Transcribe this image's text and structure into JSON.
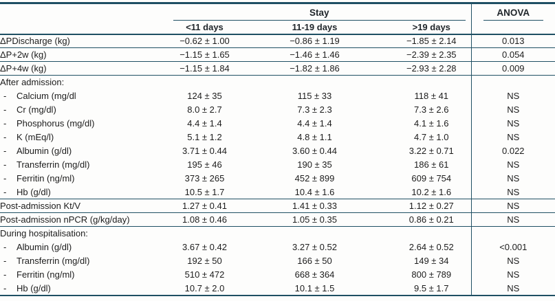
{
  "colors": {
    "line": "#1e4f63",
    "text": "#1c1c1c",
    "header_text": "#20262b",
    "background": "#fdfdfc"
  },
  "table": {
    "dash": "-",
    "header": {
      "group_label": "Stay",
      "anova_label": "ANOVA",
      "columns": [
        "<11 days",
        "11-19 days",
        ">19 days"
      ]
    },
    "rows": [
      {
        "kind": "data",
        "indent": false,
        "label": "ΔPDischarge (kg)",
        "values": [
          "−0.62 ± 1.00",
          "−0.86 ± 1.19",
          "−1.85 ± 2.14"
        ],
        "anova": "0.013",
        "rule": true
      },
      {
        "kind": "data",
        "indent": false,
        "label": "ΔP+2w (kg)",
        "values": [
          "−1.15 ± 1.65",
          "−1.46 ± 1.46",
          "−2.39 ± 2.35"
        ],
        "anova": "0.054",
        "rule": true
      },
      {
        "kind": "data",
        "indent": false,
        "label": "ΔP+4w (kg)",
        "values": [
          "−1.15 ± 1.84",
          "−1.82 ± 1.86",
          "−2.93 ± 2.28"
        ],
        "anova": "0.009",
        "rule": true
      },
      {
        "kind": "section",
        "label": "After admission:",
        "rule": false
      },
      {
        "kind": "data",
        "indent": true,
        "label": "Calcium (mg/dl",
        "values": [
          "124 ± 35",
          "115 ± 33",
          "118 ± 41"
        ],
        "anova": "NS",
        "rule": false
      },
      {
        "kind": "data",
        "indent": true,
        "label": "Cr (mg/dl)",
        "values": [
          "8.0 ± 2.7",
          "7.3 ± 2.3",
          "7.3 ± 2.6"
        ],
        "anova": "NS",
        "rule": false
      },
      {
        "kind": "data",
        "indent": true,
        "label": "Phosphorus (mg/dl)",
        "values": [
          "4.4 ± 1.4",
          "4.4 ± 1.4",
          "4.1 ± 1.6"
        ],
        "anova": "NS",
        "rule": false
      },
      {
        "kind": "data",
        "indent": true,
        "label": "K (mEq/l)",
        "values": [
          "5.1 ± 1.2",
          "4.8 ± 1.1",
          "4.7 ± 1.0"
        ],
        "anova": "NS",
        "rule": false
      },
      {
        "kind": "data",
        "indent": true,
        "label": "Albumin (g/dl)",
        "values": [
          "3.71 ± 0.44",
          "3.60 ± 0.44",
          "3.22 ± 0.71"
        ],
        "anova": "0.022",
        "rule": false
      },
      {
        "kind": "data",
        "indent": true,
        "label": "Transferrin (mg/dl)",
        "values": [
          "195 ± 46",
          "190 ± 35",
          "186 ± 61"
        ],
        "anova": "NS",
        "rule": false
      },
      {
        "kind": "data",
        "indent": true,
        "label": "Ferritin (ng/ml)",
        "values": [
          "373 ± 265",
          "452 ± 899",
          "609 ± 754"
        ],
        "anova": "NS",
        "rule": false
      },
      {
        "kind": "data",
        "indent": true,
        "label": "Hb (g/dl)",
        "values": [
          "10.5 ± 1.7",
          "10.4 ± 1.6",
          "10.2 ± 1.6"
        ],
        "anova": "NS",
        "rule": true
      },
      {
        "kind": "data",
        "indent": false,
        "label": "Post-admission Kt/V",
        "values": [
          "1.27 ± 0.41",
          "1.41 ± 0.33",
          "1.12 ± 0.27"
        ],
        "anova": "NS",
        "rule": true
      },
      {
        "kind": "data",
        "indent": false,
        "label": "Post-admission nPCR (g/kg/day)",
        "values": [
          "1.08 ± 0.46",
          "1.05 ± 0.35",
          "0.86 ± 0.21"
        ],
        "anova": "NS",
        "rule": true
      },
      {
        "kind": "section",
        "label": "During hospitalisation:",
        "rule": false
      },
      {
        "kind": "data",
        "indent": true,
        "label": "Albumin (g/dl)",
        "values": [
          "3.67 ± 0.42",
          "3.27 ± 0.52",
          "2.64 ± 0.52"
        ],
        "anova": "<0.001",
        "rule": false
      },
      {
        "kind": "data",
        "indent": true,
        "label": "Transferrin (mg/dl)",
        "values": [
          "192 ± 50",
          "166 ± 50",
          "149 ± 34"
        ],
        "anova": "NS",
        "rule": false
      },
      {
        "kind": "data",
        "indent": true,
        "label": "Ferritin (ng/ml)",
        "values": [
          "510 ± 472",
          "668 ± 364",
          "800 ± 789"
        ],
        "anova": "NS",
        "rule": false
      },
      {
        "kind": "data",
        "indent": true,
        "label": "Hb (g/dl)",
        "values": [
          "10.7 ± 2.0",
          "10.1 ± 1.5",
          "9.5 ± 1.7"
        ],
        "anova": "NS",
        "rule": true
      }
    ]
  }
}
